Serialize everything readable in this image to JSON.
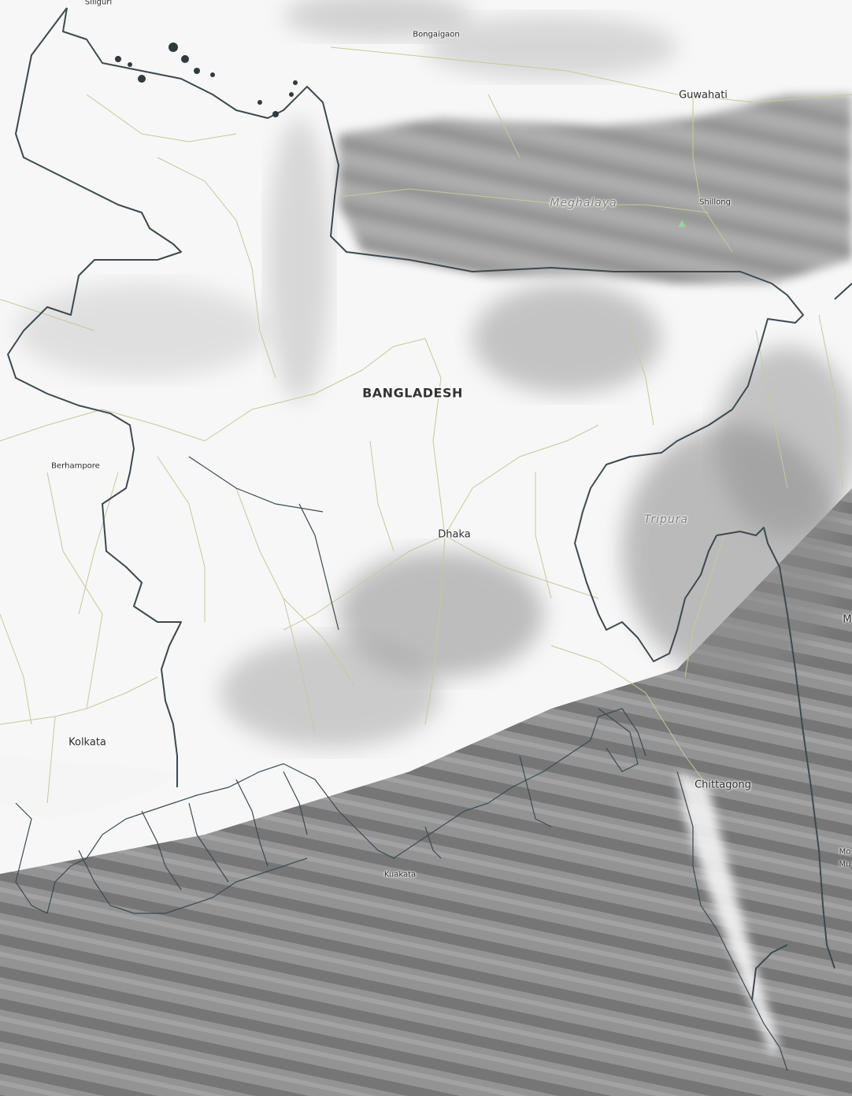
{
  "map": {
    "country_label": "BANGLADESH",
    "regions": {
      "meghalaya": "Meghalaya",
      "tripura": "Tripura"
    },
    "cities": {
      "siliguri": "Siliguri",
      "bongaigaon": "Bongaigaon",
      "guwahati": "Guwahati",
      "shillong": "Shillong",
      "berhampore": "Berhampore",
      "dhaka": "Dhaka",
      "kolkata": "Kolkata",
      "chittagong": "Chittagong",
      "kuakata": "Kuakata"
    },
    "edge_labels": {
      "right_fragment_1": "Mo",
      "right_fragment_2": "Mu",
      "right_fragment_3": "M"
    },
    "colors": {
      "border": "#3c4a4f",
      "roads": "#c8c89a",
      "cloud_dark": "#7b7b7b",
      "cloud_light": "#d9d9d9",
      "land": "#ffffff",
      "peak": "#9fcf9f"
    }
  }
}
